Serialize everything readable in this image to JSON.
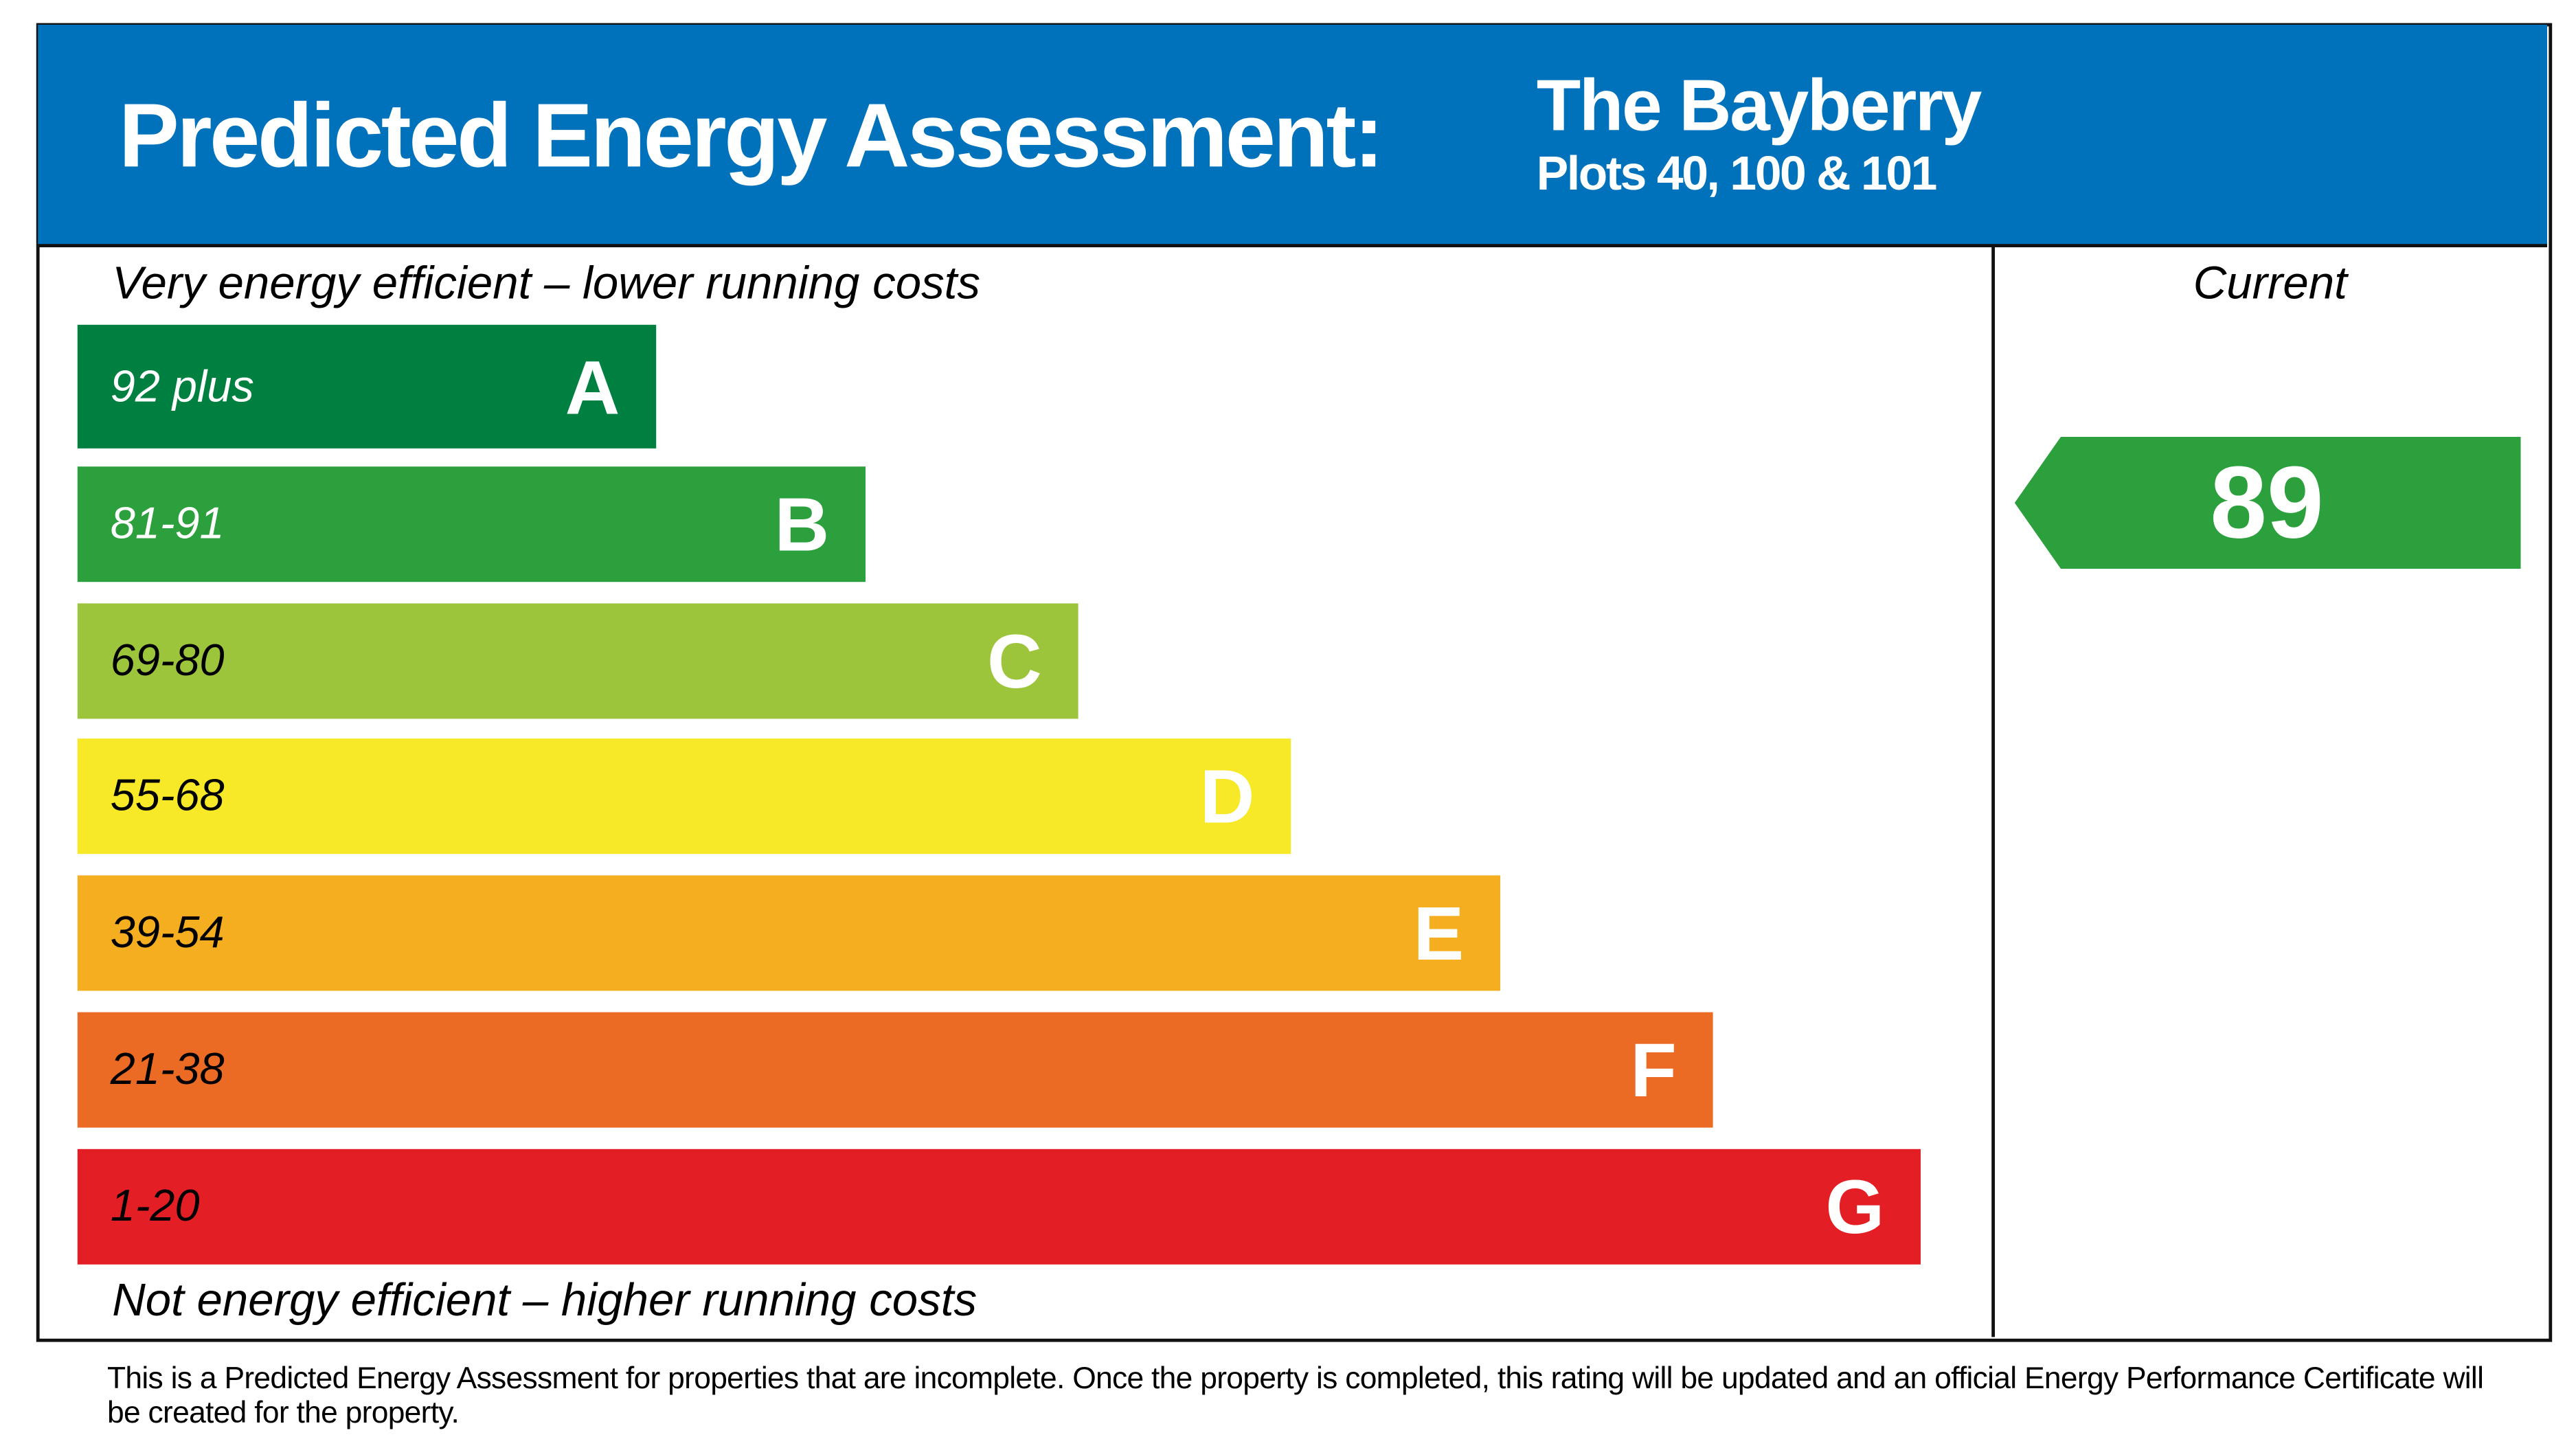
{
  "header": {
    "title": "Predicted Energy Assessment:",
    "property_name": "The Bayberry",
    "plots": "Plots 40, 100 & 101",
    "background_color": "#0072bc"
  },
  "chart_data": {
    "type": "bar",
    "top_caption": "Very energy efficient – lower running costs",
    "bottom_caption": "Not energy efficient – higher running costs",
    "bands": [
      {
        "letter": "A",
        "range": "92 plus",
        "color": "#008040",
        "text_color": "#ffffff"
      },
      {
        "letter": "B",
        "range": "81-91",
        "color": "#2ca03c",
        "text_color": "#ffffff"
      },
      {
        "letter": "C",
        "range": "69-80",
        "color": "#9dc53c",
        "text_color": "#000000"
      },
      {
        "letter": "D",
        "range": "55-68",
        "color": "#f7e927",
        "text_color": "#000000"
      },
      {
        "letter": "E",
        "range": "39-54",
        "color": "#f5ae1f",
        "text_color": "#000000"
      },
      {
        "letter": "F",
        "range": "21-38",
        "color": "#ec6b24",
        "text_color": "#000000"
      },
      {
        "letter": "G",
        "range": "1-20",
        "color": "#e31e24",
        "text_color": "#000000"
      }
    ],
    "current": {
      "label": "Current",
      "value": "89",
      "band": "B",
      "color": "#2ca03c"
    }
  },
  "footnote": "This is a Predicted Energy Assessment for properties that are incomplete. Once the property is completed, this rating will be updated and an official Energy Performance Certificate will be created for the property."
}
